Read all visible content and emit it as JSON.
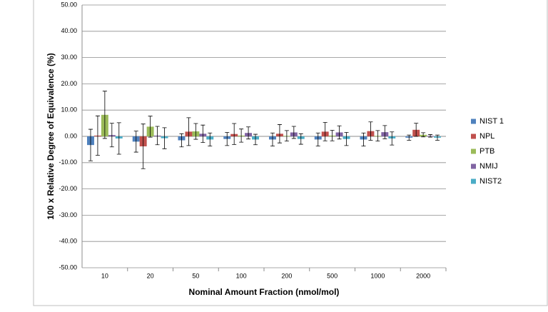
{
  "chart_data": {
    "type": "bar",
    "x_label": "Nominal Amount Fraction (nmol/mol)",
    "y_label": "100 x Relative Degree of Equivalence (%)",
    "categories": [
      "10",
      "20",
      "50",
      "100",
      "200",
      "500",
      "1000",
      "2000"
    ],
    "ylim": [
      -50,
      50
    ],
    "yticks": [
      {
        "value": -50,
        "label": "-50.00"
      },
      {
        "value": -40,
        "label": "-40.00"
      },
      {
        "value": -30,
        "label": "-30.00"
      },
      {
        "value": -20,
        "label": "-20.00"
      },
      {
        "value": -10,
        "label": "-10.00"
      },
      {
        "value": 0,
        "label": "0.00"
      },
      {
        "value": 10,
        "label": "10.00"
      },
      {
        "value": 20,
        "label": "20.00"
      },
      {
        "value": 30,
        "label": "30.00"
      },
      {
        "value": 40,
        "label": "40.00"
      },
      {
        "value": 50,
        "label": "50.00"
      }
    ],
    "grid": true,
    "legend": "right",
    "series": [
      {
        "name": "NIST 1",
        "color": "#4f81bd",
        "values": [
          -3.3,
          -2.0,
          -1.5,
          -1.0,
          -1.2,
          -1.2,
          -1.2,
          -0.5
        ],
        "errors": [
          6.0,
          4.0,
          2.5,
          2.5,
          2.5,
          2.5,
          2.5,
          1.0
        ]
      },
      {
        "name": "NPL",
        "color": "#c0504d",
        "values": [
          0.3,
          -3.8,
          1.8,
          0.9,
          1.0,
          1.8,
          2.0,
          2.5
        ],
        "errors": [
          7.5,
          8.5,
          5.3,
          4.0,
          3.5,
          3.5,
          3.5,
          2.5
        ]
      },
      {
        "name": "PTB",
        "color": "#9bbb59",
        "values": [
          8.2,
          3.7,
          1.9,
          0.3,
          0.2,
          0.3,
          0.2,
          0.6
        ],
        "errors": [
          9.0,
          4.0,
          3.0,
          2.5,
          2.0,
          2.0,
          2.0,
          0.8
        ]
      },
      {
        "name": "NMIJ",
        "color": "#8064a2",
        "values": [
          0.5,
          0.3,
          1.0,
          1.3,
          1.5,
          1.5,
          1.6,
          0.2
        ],
        "errors": [
          4.5,
          3.5,
          3.3,
          2.3,
          2.3,
          2.5,
          2.5,
          0.5
        ]
      },
      {
        "name": "NIST2",
        "color": "#4bacc6",
        "values": [
          -0.8,
          -0.7,
          -1.2,
          -1.2,
          -1.0,
          -1.0,
          -0.8,
          -0.5
        ],
        "errors": [
          6.0,
          4.0,
          2.5,
          2.0,
          2.0,
          2.5,
          2.5,
          1.0
        ]
      }
    ]
  }
}
